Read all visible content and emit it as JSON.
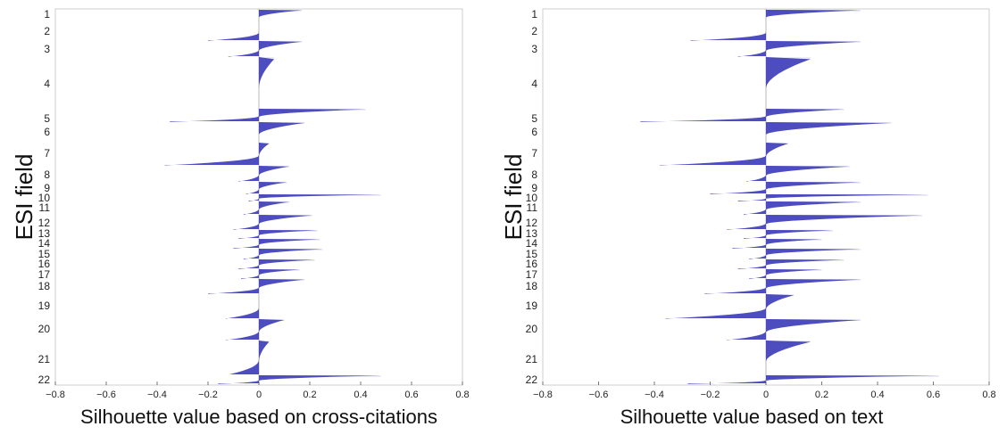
{
  "chart_data": [
    {
      "type": "bar",
      "orientation": "horizontal-silhouette",
      "xlabel": "Silhouette value based on cross-citations",
      "ylabel": "ESI field",
      "xlim": [
        -0.8,
        0.8
      ],
      "xticks": [
        "−0.8",
        "−0.6",
        "−0.4",
        "−0.2",
        "0",
        "0.2",
        "0.4",
        "0.6",
        "0.8"
      ],
      "fill_color": "#3a3ab8",
      "grid": false,
      "categories": [
        "1",
        "2",
        "3",
        "4",
        "5",
        "6",
        "7",
        "8",
        "9",
        "10",
        "11",
        "12",
        "13",
        "14",
        "15",
        "16",
        "17",
        "18",
        "19",
        "20",
        "21",
        "22"
      ],
      "series": [
        {
          "cluster_extremes": [
            {
              "field": "1",
              "max": 0.17,
              "min": 0.0
            },
            {
              "field": "2",
              "max": 0.0,
              "min": -0.2
            },
            {
              "field": "3",
              "max": 0.17,
              "min": -0.12
            },
            {
              "field": "4",
              "max": 0.06,
              "min": 0.0
            },
            {
              "field": "5",
              "max": 0.42,
              "min": -0.35
            },
            {
              "field": "6",
              "max": 0.18,
              "min": 0.0
            },
            {
              "field": "7",
              "max": 0.04,
              "min": -0.37
            },
            {
              "field": "8",
              "max": 0.12,
              "min": -0.08
            },
            {
              "field": "9",
              "max": 0.11,
              "min": -0.05
            },
            {
              "field": "10",
              "max": 0.48,
              "min": -0.04
            },
            {
              "field": "11",
              "max": 0.12,
              "min": -0.06
            },
            {
              "field": "12",
              "max": 0.21,
              "min": -0.1
            },
            {
              "field": "13",
              "max": 0.23,
              "min": -0.08
            },
            {
              "field": "14",
              "max": 0.24,
              "min": -0.1
            },
            {
              "field": "15",
              "max": 0.25,
              "min": -0.06
            },
            {
              "field": "16",
              "max": 0.22,
              "min": -0.08
            },
            {
              "field": "17",
              "max": 0.16,
              "min": -0.07
            },
            {
              "field": "18",
              "max": 0.18,
              "min": -0.2
            },
            {
              "field": "19",
              "max": 0.0,
              "min": -0.13
            },
            {
              "field": "20",
              "max": 0.1,
              "min": -0.13
            },
            {
              "field": "21",
              "max": 0.04,
              "min": -0.12
            },
            {
              "field": "22",
              "max": 0.48,
              "min": -0.16
            }
          ]
        }
      ]
    },
    {
      "type": "bar",
      "orientation": "horizontal-silhouette",
      "xlabel": "Silhouette value based on text",
      "ylabel": "ESI field",
      "xlim": [
        -0.8,
        0.8
      ],
      "xticks": [
        "−0.8",
        "−0.6",
        "−0.4",
        "−0.2",
        "0",
        "0.2",
        "0.4",
        "0.6",
        "0.8"
      ],
      "fill_color": "#3a3ab8",
      "grid": false,
      "categories": [
        "1",
        "2",
        "3",
        "4",
        "5",
        "6",
        "7",
        "8",
        "9",
        "10",
        "11",
        "12",
        "13",
        "14",
        "15",
        "16",
        "17",
        "18",
        "19",
        "20",
        "21",
        "22"
      ],
      "series": [
        {
          "cluster_extremes": [
            {
              "field": "1",
              "max": 0.34,
              "min": 0.0
            },
            {
              "field": "2",
              "max": 0.0,
              "min": -0.27
            },
            {
              "field": "3",
              "max": 0.34,
              "min": -0.1
            },
            {
              "field": "4",
              "max": 0.16,
              "min": 0.0
            },
            {
              "field": "5",
              "max": 0.28,
              "min": -0.45
            },
            {
              "field": "6",
              "max": 0.45,
              "min": 0.0
            },
            {
              "field": "7",
              "max": 0.08,
              "min": -0.38
            },
            {
              "field": "8",
              "max": 0.3,
              "min": -0.07
            },
            {
              "field": "9",
              "max": 0.34,
              "min": -0.2
            },
            {
              "field": "10",
              "max": 0.58,
              "min": -0.1
            },
            {
              "field": "11",
              "max": 0.34,
              "min": -0.08
            },
            {
              "field": "12",
              "max": 0.56,
              "min": -0.14
            },
            {
              "field": "13",
              "max": 0.24,
              "min": -0.08
            },
            {
              "field": "14",
              "max": 0.2,
              "min": -0.12
            },
            {
              "field": "15",
              "max": 0.34,
              "min": -0.06
            },
            {
              "field": "16",
              "max": 0.28,
              "min": -0.1
            },
            {
              "field": "17",
              "max": 0.2,
              "min": -0.06
            },
            {
              "field": "18",
              "max": 0.34,
              "min": -0.22
            },
            {
              "field": "19",
              "max": 0.1,
              "min": -0.36
            },
            {
              "field": "20",
              "max": 0.34,
              "min": -0.14
            },
            {
              "field": "21",
              "max": 0.16,
              "min": 0.0
            },
            {
              "field": "22",
              "max": 0.62,
              "min": -0.28
            }
          ]
        }
      ]
    }
  ]
}
